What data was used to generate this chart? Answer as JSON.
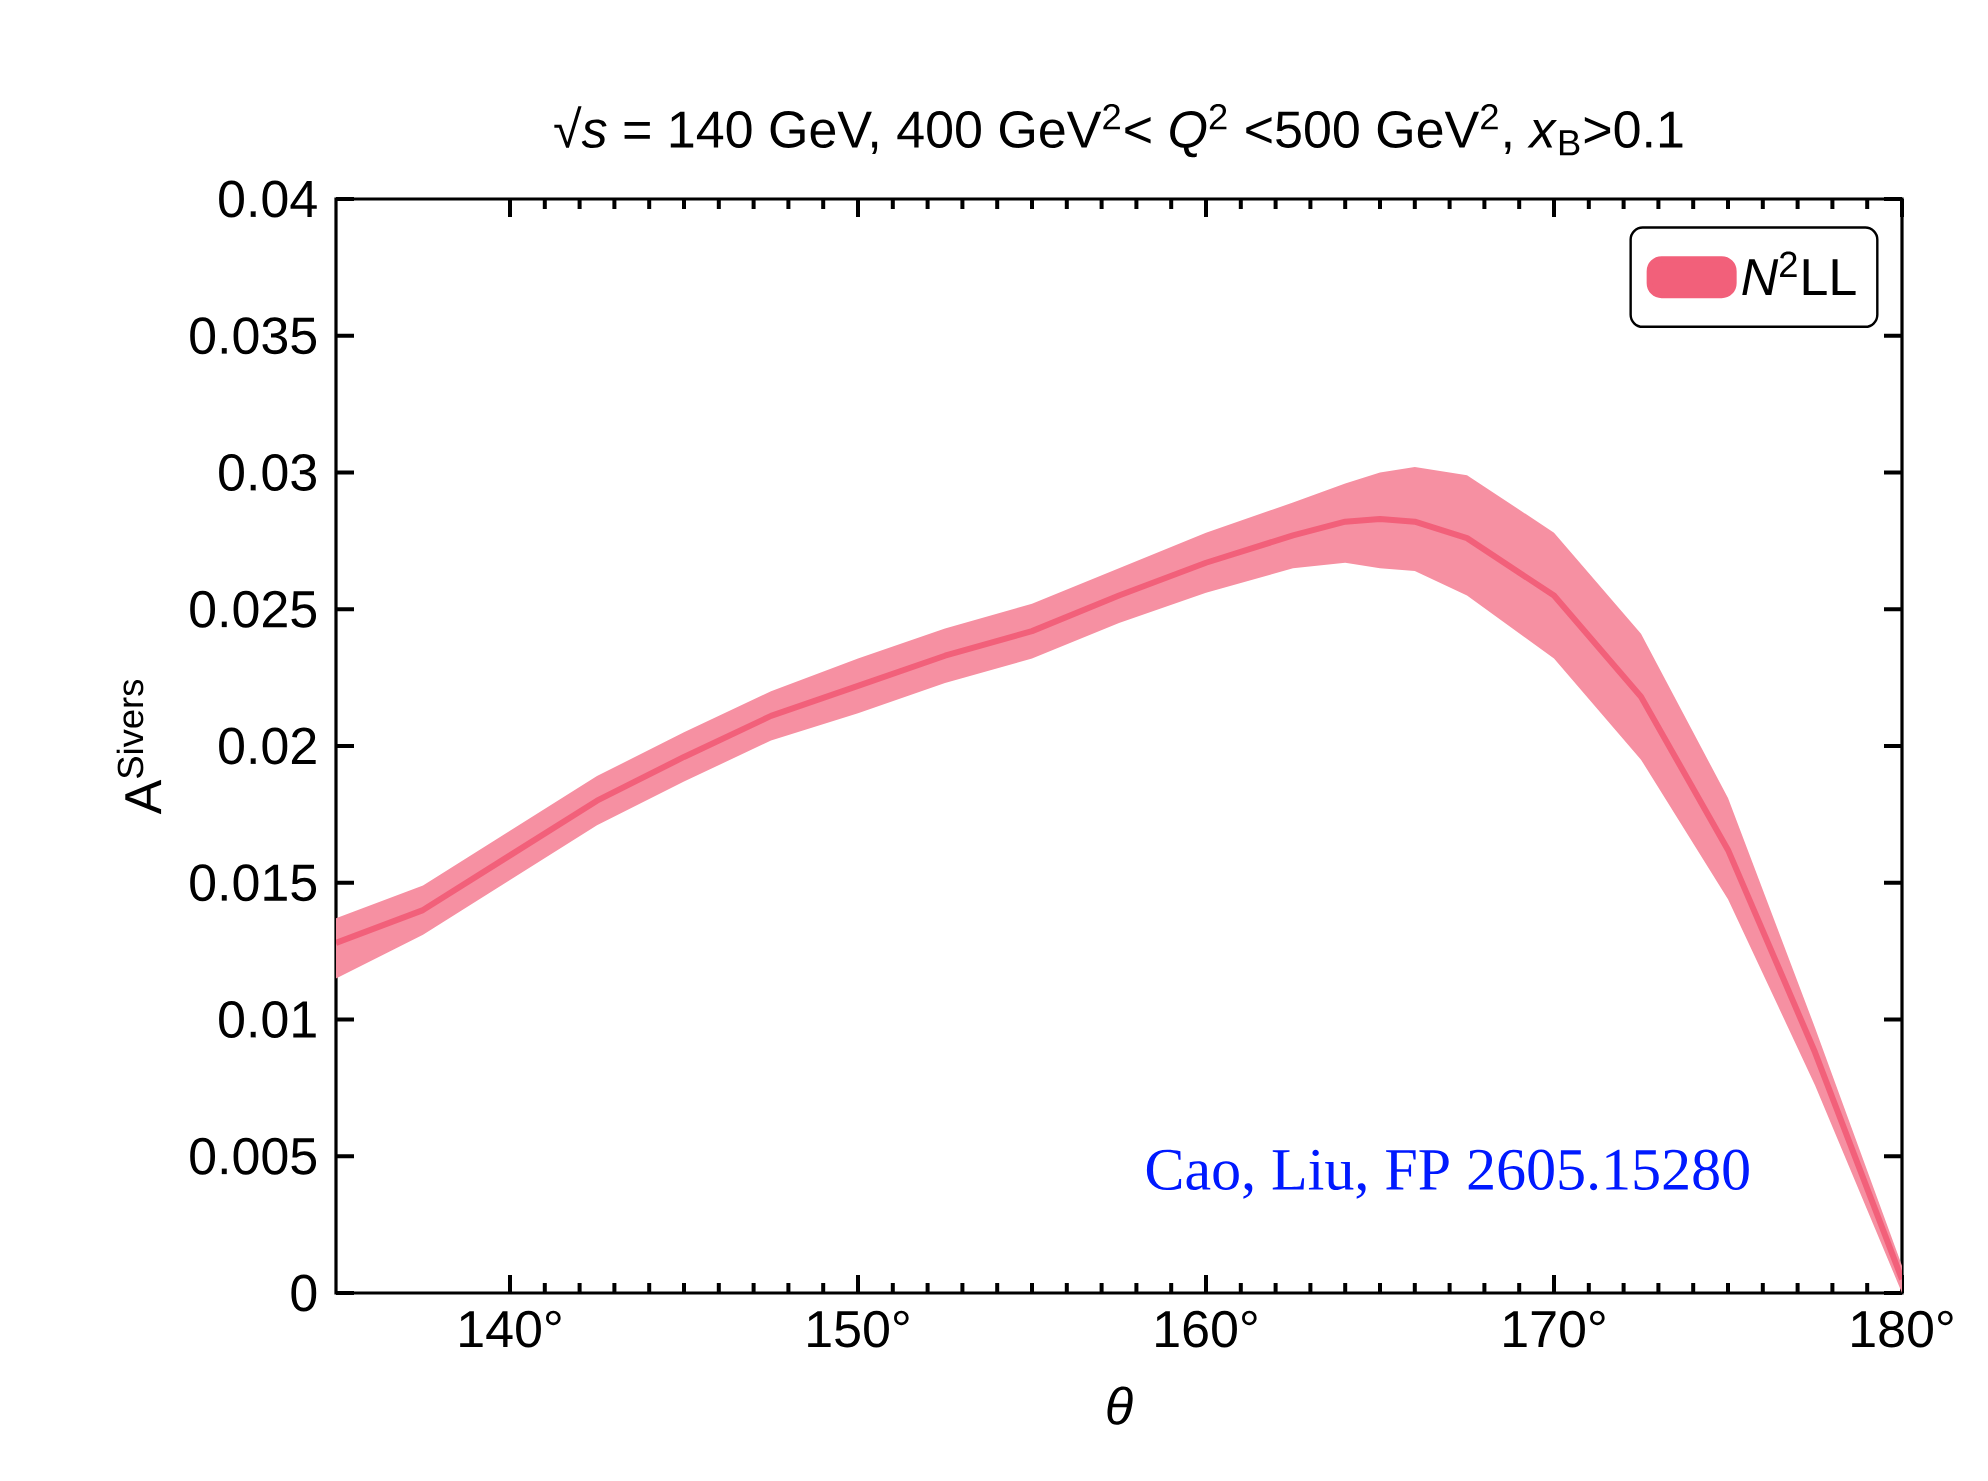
{
  "chart_data": {
    "type": "line",
    "title": "√*s* = 140 GeV, 400 GeV$^{2}$< *Q*$^{2}$ <500 GeV$^{2}$, *x*$_{B}$>0.1",
    "xlabel": "*θ*",
    "ylabel": "A$^{Sivers}$",
    "annotations": [
      "Cao, Liu, FP 2605.15280"
    ],
    "xlim": [
      135,
      180
    ],
    "xticks": [
      {
        "value": 140,
        "label": "140°"
      },
      {
        "value": 150,
        "label": "150°"
      },
      {
        "value": 160,
        "label": "160°"
      },
      {
        "value": 170,
        "label": "170°"
      },
      {
        "value": 180,
        "label": "180°"
      }
    ],
    "ylim": [
      0,
      0.04
    ],
    "yticks": [
      0,
      0.005,
      0.01,
      0.015,
      0.02,
      0.025,
      0.03,
      0.035,
      0.04
    ],
    "legend": "top right",
    "marker": "none",
    "series": [
      {
        "name": "*N*$^{2}$LL",
        "type": "line",
        "color": "#f2607a",
        "x": [
          135,
          137.5,
          140,
          142.5,
          145,
          147.5,
          150,
          152.5,
          155,
          157.5,
          160,
          162.5,
          164,
          165,
          166,
          167.5,
          170,
          172.5,
          175,
          177.5,
          180
        ],
        "values": [
          0.0128,
          0.014,
          0.016,
          0.018,
          0.0196,
          0.0211,
          0.0222,
          0.0233,
          0.0242,
          0.0255,
          0.0267,
          0.0277,
          0.0282,
          0.0283,
          0.0282,
          0.0276,
          0.0255,
          0.0218,
          0.0162,
          0.0088,
          0.0005
        ],
        "upper": [
          0.0137,
          0.0149,
          0.0169,
          0.0189,
          0.0205,
          0.022,
          0.0232,
          0.0243,
          0.0252,
          0.0265,
          0.0278,
          0.0289,
          0.0296,
          0.03,
          0.0302,
          0.0299,
          0.0278,
          0.0241,
          0.0181,
          0.0097,
          0.001
        ],
        "lower": [
          0.0115,
          0.0131,
          0.0151,
          0.0171,
          0.0187,
          0.0202,
          0.0212,
          0.0223,
          0.0232,
          0.0245,
          0.0256,
          0.0265,
          0.0267,
          0.0265,
          0.0264,
          0.0255,
          0.0232,
          0.0195,
          0.0144,
          0.0076,
          0.0
        ]
      }
    ]
  }
}
